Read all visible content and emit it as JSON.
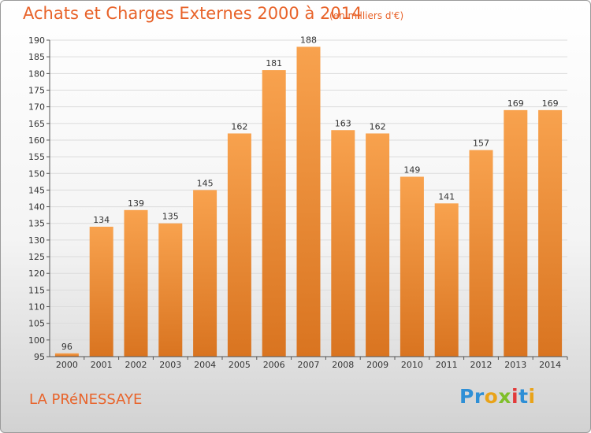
{
  "title": "Achats et Charges Externes 2000 à 2014",
  "subtitle": "(en milliers d'€)",
  "place": "LA PRéNESSAYE",
  "logo": {
    "p1": "Pr",
    "p2": "o",
    "p3": "x",
    "p4": "i",
    "p5": "t",
    "p6": "i"
  },
  "colors": {
    "bar_top": "#f8a24e",
    "bar_bottom": "#d97420",
    "text_accent": "#e8632a",
    "grid": "#dcdcdc"
  },
  "chart_data": {
    "type": "bar",
    "title": "Achats et Charges Externes 2000 à 2014",
    "subtitle": "(en milliers d'€)",
    "xlabel": "",
    "ylabel": "",
    "categories": [
      "2000",
      "2001",
      "2002",
      "2003",
      "2004",
      "2005",
      "2006",
      "2007",
      "2008",
      "2009",
      "2010",
      "2011",
      "2012",
      "2013",
      "2014"
    ],
    "values": [
      96,
      134,
      139,
      135,
      145,
      162,
      181,
      188,
      163,
      162,
      149,
      141,
      157,
      169,
      169
    ],
    "ylim": [
      95,
      190
    ],
    "yticks": [
      95,
      100,
      105,
      110,
      115,
      120,
      125,
      130,
      135,
      140,
      145,
      150,
      155,
      160,
      165,
      170,
      175,
      180,
      185,
      190
    ],
    "grid": true,
    "legend": "none"
  }
}
